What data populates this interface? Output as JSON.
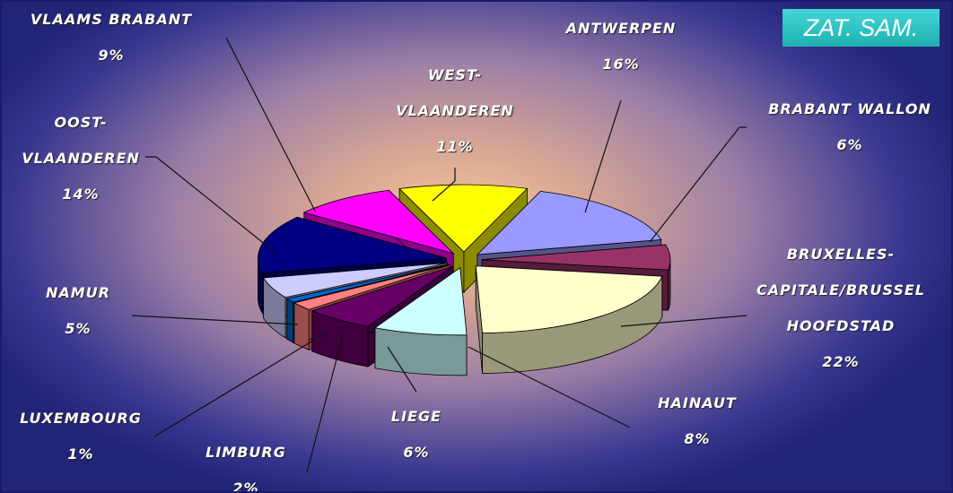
{
  "chart_data": {
    "type": "pie3d",
    "annotation": "ZAT. SAM.",
    "categories": [
      "WEST-VLAANDEREN",
      "ANTWERPEN",
      "BRABANT WALLON",
      "BRUXELLES-CAPITALE/BRUSSEL HOOFDSTAD",
      "HAINAUT",
      "LIEGE",
      "LIMBURG",
      "LUXEMBOURG",
      "NAMUR",
      "OOST-VLAANDEREN",
      "VLAAMS BRABANT"
    ],
    "values": [
      11,
      16,
      6,
      22,
      8,
      6,
      2,
      1,
      5,
      14,
      9
    ],
    "value_labels": [
      "11%",
      "16%",
      "6%",
      "22%",
      "8%",
      "6%",
      "2%",
      "1%",
      "5%",
      "14%",
      "9%"
    ],
    "colors": [
      "#ffff00",
      "#9999ff",
      "#993366",
      "#ffffcc",
      "#ccffff",
      "#660066",
      "#ff8080",
      "#0066cc",
      "#ccccff",
      "#000080",
      "#ff00ff"
    ]
  }
}
